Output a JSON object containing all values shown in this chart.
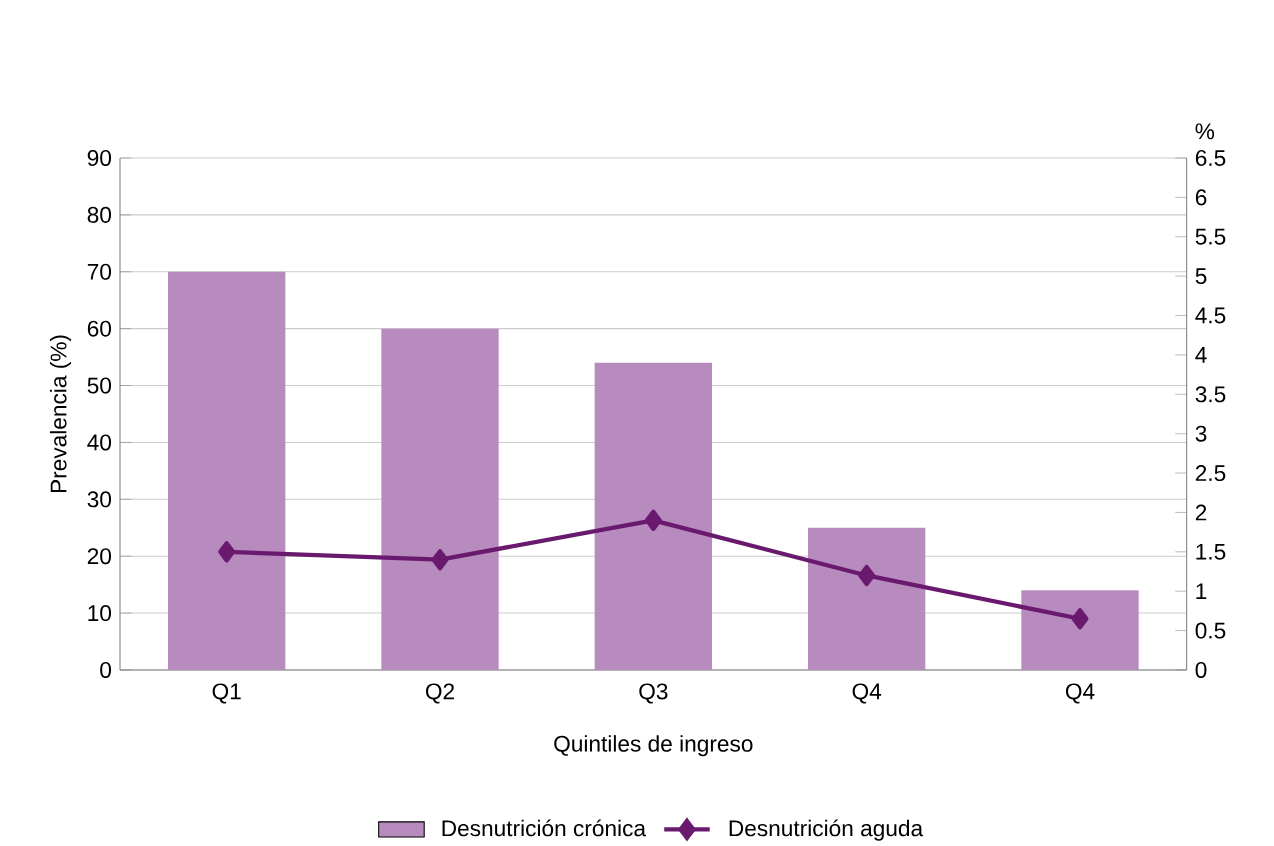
{
  "chart_data": {
    "type": "bar",
    "xlabel": "Quintiles de ingreso",
    "ylabel": "Prevalencia (%)",
    "y2label": "%",
    "categories": [
      "Q1",
      "Q2",
      "Q3",
      "Q4",
      "Q4"
    ],
    "series": [
      {
        "name": "Desnutrición crónica",
        "color": "#b88bbf",
        "values": [
          70,
          60,
          54,
          25,
          14
        ]
      },
      {
        "name": "Desnutrición aguda",
        "type": "line",
        "axis": "y2",
        "color": "#6a1a6e",
        "marker": "diamond",
        "values": [
          1.5,
          1.4,
          1.9,
          1.2,
          0.65
        ]
      }
    ],
    "ylim": [
      0,
      90
    ],
    "yticks": [
      0,
      10,
      20,
      30,
      40,
      50,
      60,
      70,
      80,
      90
    ],
    "y2lim": [
      0,
      6.5
    ],
    "y2ticks": [
      0,
      0.5,
      1,
      1.5,
      2,
      2.5,
      3,
      3.5,
      4,
      4.5,
      5,
      5.5,
      6,
      6.5
    ],
    "grid": "y",
    "legend": "bottom"
  }
}
